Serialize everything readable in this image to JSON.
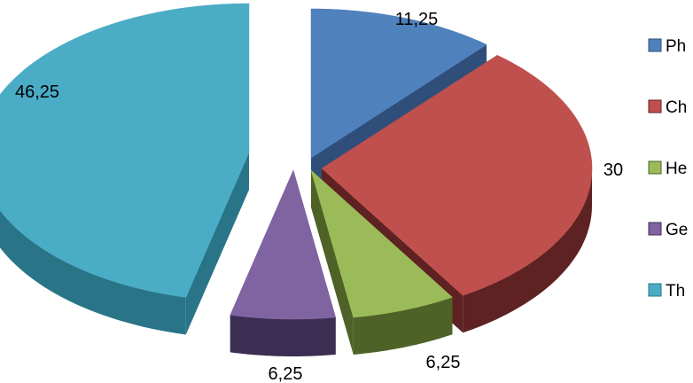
{
  "chart_data": {
    "type": "pie",
    "style": "3d-exploded",
    "legend_position": "right",
    "slices": [
      {
        "label": "Ph",
        "value": 11.25,
        "value_label": "11,25",
        "color": "#4f81bd",
        "side": "#2f4f7a"
      },
      {
        "label": "Ch",
        "value": 30,
        "value_label": "30",
        "color": "#c0504d",
        "side": "#5e2222"
      },
      {
        "label": "He",
        "value": 6.25,
        "value_label": "6,25",
        "color": "#9bbb59",
        "side": "#4e6228"
      },
      {
        "label": "Ge",
        "value": 6.25,
        "value_label": "6,25",
        "color": "#8064a2",
        "side": "#3c2d52"
      },
      {
        "label": "Th",
        "value": 46.25,
        "value_label": "46,25",
        "color": "#4bacc6",
        "side": "#2a7488"
      }
    ]
  }
}
